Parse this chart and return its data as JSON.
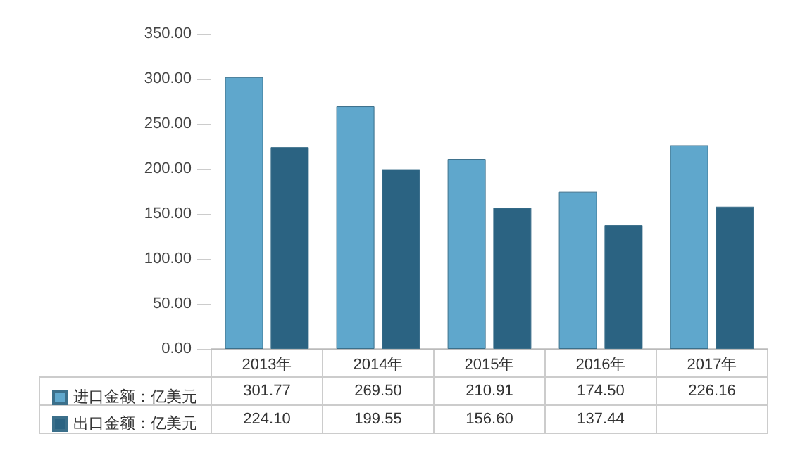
{
  "chart_data": {
    "type": "bar",
    "categories": [
      "2013年",
      "2014年",
      "2015年",
      "2016年",
      "2017年"
    ],
    "series": [
      {
        "name": "进口金额：亿美元",
        "color": "#5fa7cc",
        "values": [
          301.77,
          269.5,
          210.91,
          174.5,
          226.16
        ],
        "value_labels": [
          "301.77",
          "269.50",
          "210.91",
          "174.50",
          "226.16"
        ]
      },
      {
        "name": "出口金额：亿美元",
        "color": "#2b6382",
        "values": [
          224.1,
          199.55,
          156.6,
          137.44,
          158
        ],
        "value_labels": [
          "224.10",
          "199.55",
          "156.60",
          "137.44",
          null
        ]
      }
    ],
    "ylim": [
      0,
      350
    ],
    "yticks": [
      {
        "value": 0,
        "label": "0.00"
      },
      {
        "value": 50,
        "label": "50.00"
      },
      {
        "value": 100,
        "label": "100.00"
      },
      {
        "value": 150,
        "label": "150.00"
      },
      {
        "value": 200,
        "label": "200.00"
      },
      {
        "value": 250,
        "label": "250.00"
      },
      {
        "value": 300,
        "label": "300.00"
      },
      {
        "value": 350,
        "label": "350.00"
      }
    ],
    "grid": false,
    "legend": "bottom left"
  }
}
